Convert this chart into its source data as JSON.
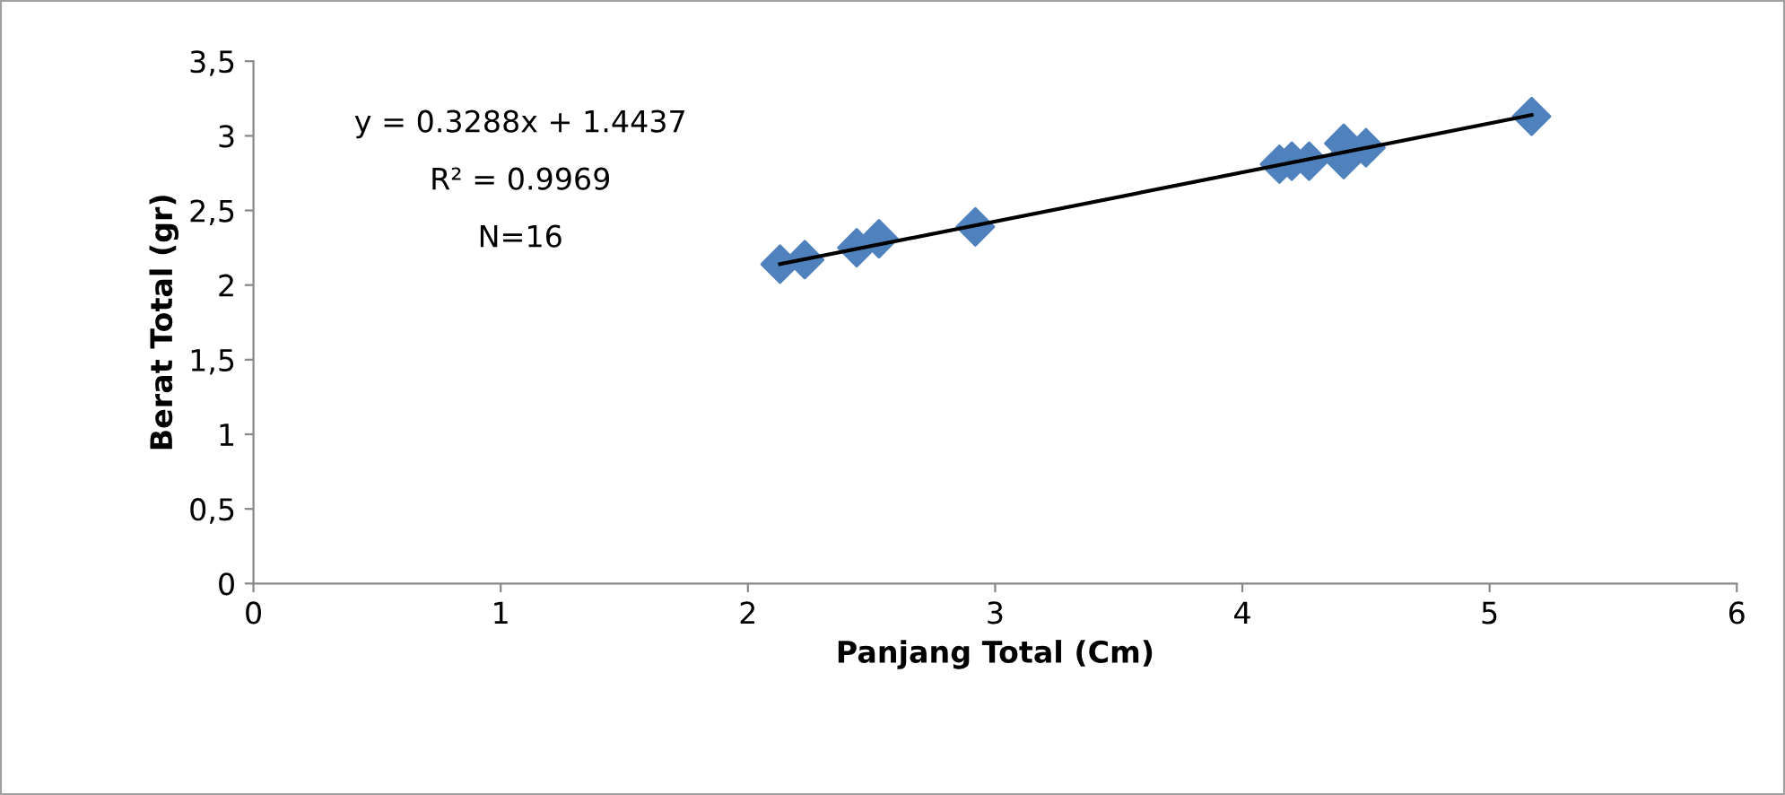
{
  "chart_data": {
    "type": "scatter",
    "xlabel": "Panjang Total (Cm)",
    "ylabel": "Berat Total (gr)",
    "xlim": [
      0,
      6
    ],
    "xticks": [
      0,
      1,
      2,
      3,
      4,
      5,
      6
    ],
    "ylim": [
      0,
      3.5
    ],
    "yticks": [
      0,
      {
        "value": 0.5,
        "label": "0,5"
      },
      1,
      {
        "value": 1.5,
        "label": "1,5"
      },
      2,
      {
        "value": 2.5,
        "label": "2,5"
      },
      3,
      {
        "value": 3.5,
        "label": "3,5"
      }
    ],
    "marker": "diamond",
    "grid": false,
    "legend": false,
    "series": [
      {
        "color": "#4f81bd",
        "x": [
          2.13,
          2.23,
          2.44,
          2.53,
          2.92,
          4.15,
          4.2,
          4.27,
          4.41,
          4.41,
          4.5,
          5.17
        ],
        "values": [
          2.14,
          2.17,
          2.25,
          2.31,
          2.39,
          2.81,
          2.83,
          2.83,
          2.95,
          2.84,
          2.92,
          3.13
        ]
      },
      {
        "type": "line",
        "color": "#000000",
        "x": [
          2.13,
          5.17
        ],
        "values": [
          2.14,
          3.14
        ],
        "marker": "none"
      }
    ],
    "annotations": [
      "y = 0.3288x + 1.4437",
      "R² = 0.9969",
      "N=16"
    ]
  }
}
